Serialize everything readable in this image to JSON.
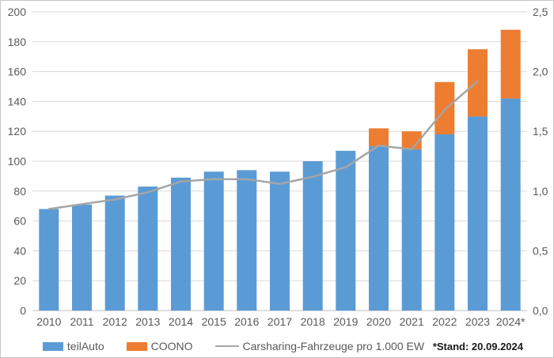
{
  "footnote": "*Stand: 20.09.2024",
  "chart_data": {
    "type": "bar",
    "subtype": "stacked-column-with-line",
    "title": "",
    "categories": [
      "2010",
      "2011",
      "2012",
      "2013",
      "2014",
      "2015",
      "2016",
      "2017",
      "2018",
      "2019",
      "2020",
      "2021",
      "2022",
      "2023",
      "2024*"
    ],
    "series": [
      {
        "name": "teilAuto",
        "color": "#5B9BD5",
        "values": [
          68,
          71,
          77,
          83,
          89,
          93,
          94,
          93,
          100,
          107,
          110,
          108,
          118,
          130,
          142
        ]
      },
      {
        "name": "COONO",
        "color": "#ED7D31",
        "values": [
          0,
          0,
          0,
          0,
          0,
          0,
          0,
          0,
          0,
          0,
          12,
          12,
          35,
          45,
          46
        ]
      }
    ],
    "line_series": {
      "name": "Carsharing-Fahrzeuge pro 1.000 EW",
      "color": "#A5A5A5",
      "axis": "right",
      "values": [
        0.85,
        0.89,
        0.93,
        0.99,
        1.08,
        1.1,
        1.1,
        1.06,
        1.12,
        1.2,
        1.38,
        1.35,
        1.68,
        1.92
      ]
    },
    "left_axis": {
      "min": 0,
      "max": 200,
      "step": 20,
      "tick_labels": [
        "0",
        "20",
        "40",
        "60",
        "80",
        "100",
        "120",
        "140",
        "160",
        "180",
        "200"
      ]
    },
    "right_axis": {
      "min": 0,
      "max": 2.5,
      "step": 0.5,
      "tick_labels": [
        "0,0",
        "0,5",
        "1,0",
        "1,5",
        "2,0",
        "2,5"
      ]
    },
    "legend_position": "bottom",
    "grid": true,
    "colors": {
      "gridline": "#D9D9D9",
      "zero_line": "#BFBFBF",
      "axis_text": "#595959",
      "minor_tick": "#D9D9D9"
    }
  }
}
